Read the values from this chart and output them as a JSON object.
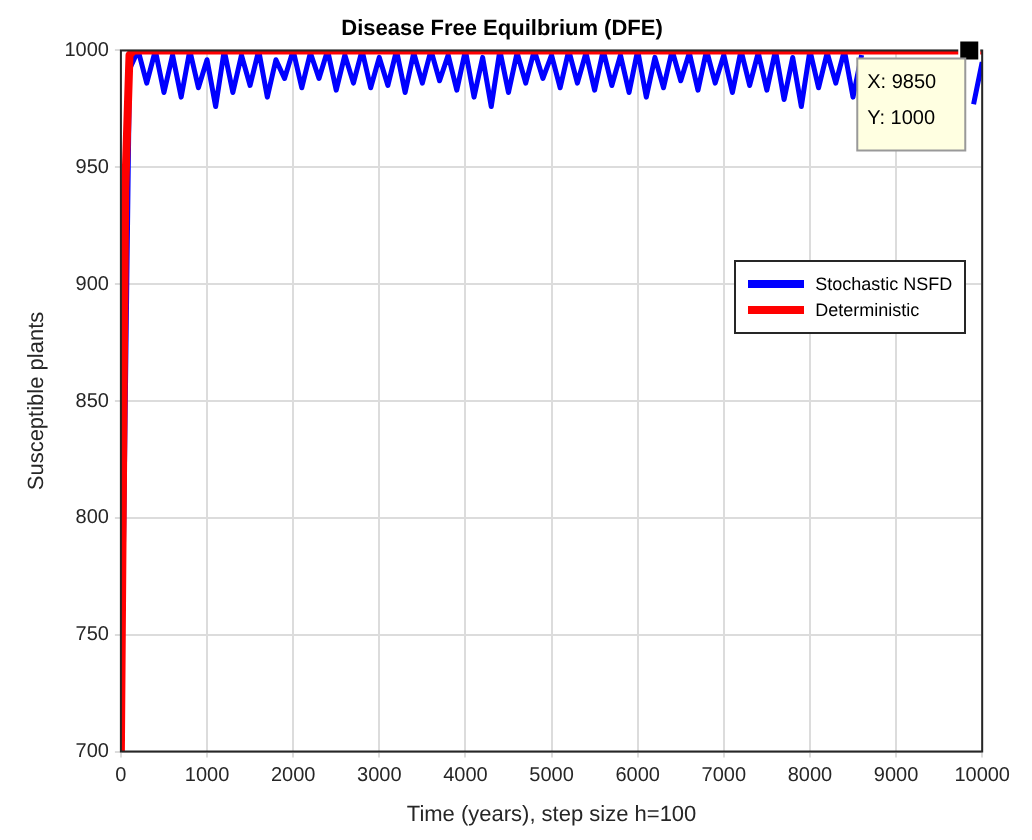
{
  "chart_data": {
    "type": "line",
    "title": "Disease Free Equilbrium (DFE)",
    "xlabel": "Time (years), step size h=100",
    "ylabel": "Susceptible plants",
    "xlim": [
      0,
      10000
    ],
    "xticks": [
      0,
      1000,
      2000,
      3000,
      4000,
      5000,
      6000,
      7000,
      8000,
      9000,
      10000
    ],
    "ylim": [
      700,
      1000
    ],
    "yticks": [
      700,
      750,
      800,
      850,
      900,
      950,
      1000
    ],
    "grid": true,
    "legend": "right",
    "marker": "none",
    "line_style": "solid",
    "annotations": [
      {
        "text": "X: 9850\nY: 1000",
        "x": 9850,
        "y": 1000
      }
    ],
    "series": [
      {
        "name": "Stochastic NSFD",
        "color": "#0000ff",
        "x": [
          0,
          100,
          200,
          300,
          400,
          500,
          600,
          700,
          800,
          900,
          1000,
          1100,
          1200,
          1300,
          1400,
          1500,
          1600,
          1700,
          1800,
          1900,
          2000,
          2100,
          2200,
          2300,
          2400,
          2500,
          2600,
          2700,
          2800,
          2900,
          3000,
          3100,
          3200,
          3300,
          3400,
          3500,
          3600,
          3700,
          3800,
          3900,
          4000,
          4100,
          4200,
          4300,
          4400,
          4500,
          4600,
          4700,
          4800,
          4900,
          5000,
          5100,
          5200,
          5300,
          5400,
          5500,
          5600,
          5700,
          5800,
          5900,
          6000,
          6100,
          6200,
          6300,
          6400,
          6500,
          6600,
          6700,
          6800,
          6900,
          7000,
          7100,
          7200,
          7300,
          7400,
          7500,
          7600,
          7700,
          7800,
          7900,
          8000,
          8100,
          8200,
          8300,
          8400,
          8500,
          8600,
          8700,
          8800,
          8900,
          9000,
          9100,
          9200,
          9300,
          9400,
          9500,
          9600,
          9700,
          9800,
          9900,
          10000
        ],
        "values": [
          700,
          992,
          1000,
          986,
          1000,
          982,
          998,
          980,
          1000,
          984,
          996,
          976,
          1000,
          982,
          998,
          985,
          1000,
          980,
          996,
          988,
          1000,
          984,
          999,
          988,
          1000,
          983,
          998,
          986,
          1000,
          984,
          997,
          985,
          1000,
          982,
          999,
          986,
          1000,
          987,
          998,
          983,
          1000,
          980,
          997,
          976,
          1000,
          982,
          999,
          986,
          1000,
          988,
          998,
          984,
          1000,
          986,
          999,
          983,
          1000,
          985,
          998,
          982,
          1000,
          980,
          997,
          984,
          1000,
          987,
          999,
          983,
          1000,
          986,
          998,
          982,
          1000,
          985,
          999,
          983,
          1000,
          979,
          997,
          976,
          1000,
          984,
          999,
          986,
          1000,
          980,
          998,
          null,
          null,
          null,
          null,
          null,
          null,
          null,
          null,
          null,
          null,
          null,
          null,
          977,
          995
        ]
      },
      {
        "name": "Deterministic",
        "color": "#ff0000",
        "x": [
          0,
          50,
          100,
          150,
          10000
        ],
        "values": [
          700,
          940,
          998,
          1000,
          1000
        ]
      }
    ]
  }
}
